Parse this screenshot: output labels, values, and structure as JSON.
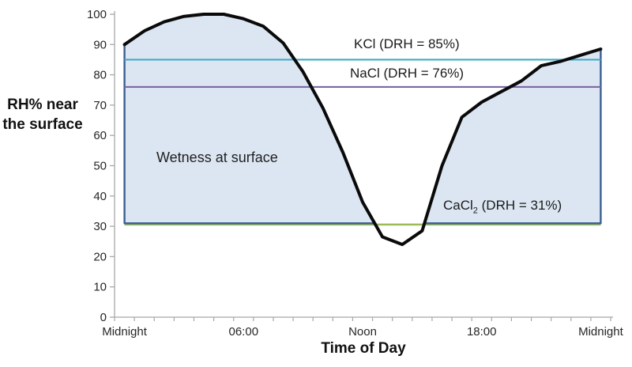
{
  "chart_data": {
    "type": "area",
    "title": "",
    "xlabel": "Time of Day",
    "ylabel": "RH% near the surface",
    "ylabel_lines": [
      "RH% near",
      "the surface"
    ],
    "x_unit": "hours",
    "xlim": [
      0,
      24
    ],
    "ylim": [
      0,
      100
    ],
    "grid": false,
    "legend": "none",
    "axis_color": "#a8a8a8",
    "tick_label_color": "#262626",
    "y_ticks": [
      0,
      10,
      20,
      30,
      40,
      50,
      60,
      70,
      80,
      90,
      100
    ],
    "x_minor_tick_step_hours": 1,
    "x_tick_labels": [
      {
        "hour": 0,
        "label": "Midnight"
      },
      {
        "hour": 6,
        "label": "06:00"
      },
      {
        "hour": 12,
        "label": "Noon"
      },
      {
        "hour": 18,
        "label": "18:00"
      },
      {
        "hour": 24,
        "label": "Midnight"
      }
    ],
    "series": [
      {
        "name": "RH% near the surface",
        "type": "line",
        "color": "#0a0a0a",
        "x": [
          0,
          1,
          2,
          3,
          4,
          5,
          6,
          7,
          8,
          9,
          10,
          11,
          12,
          13,
          14,
          15,
          16,
          17,
          18,
          19,
          20,
          21,
          22,
          23,
          24
        ],
        "values": [
          90,
          94.5,
          97.5,
          99.3,
          100,
          100,
          98.5,
          96,
          90.5,
          81,
          69,
          54.5,
          38,
          26.5,
          24,
          28.5,
          50,
          66,
          71,
          74.5,
          78,
          83,
          84.5,
          86.5,
          88.5
        ]
      }
    ],
    "area": {
      "name": "Wetness at surface",
      "fill": "#dce6f2",
      "border": "#3a5f91",
      "lower_bound": 31,
      "note": "shaded where RH curve is at or above 31%"
    },
    "reference_lines": [
      {
        "name": "KCl",
        "value": 85,
        "color": "#41abc7",
        "label": "KCl (DRH = 85%)"
      },
      {
        "name": "NaCl",
        "value": 76,
        "color": "#7d68a6",
        "label": "NaCl (DRH = 76%)"
      },
      {
        "name": "CaCl2",
        "value": 31,
        "color": "#9bbb59",
        "label_prefix": "CaCl",
        "label_sub": "2",
        "label_suffix": " (DRH = 31%)"
      }
    ]
  }
}
